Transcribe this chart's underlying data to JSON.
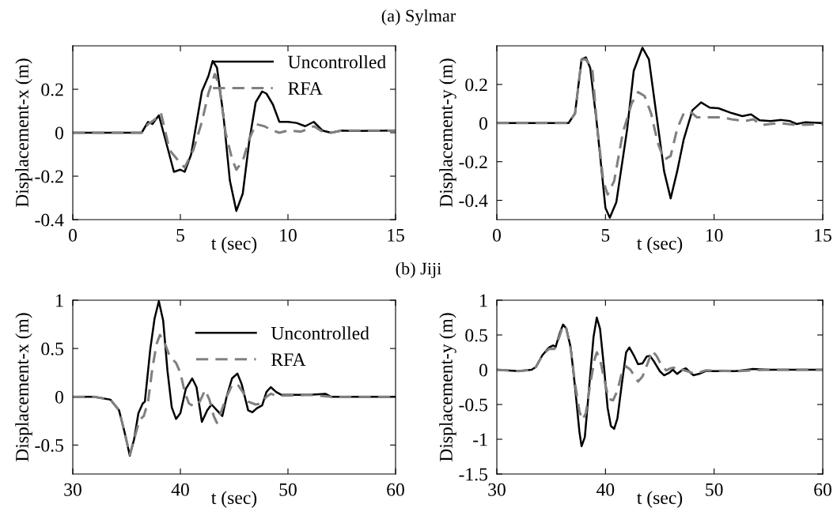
{
  "chart_data": [
    {
      "type": "line",
      "title": "(a) Sylmar",
      "xlabel": "t (sec)",
      "ylabel": "Displacement-x (m)",
      "xlim": [
        0,
        15
      ],
      "xticks": [
        0,
        5,
        10,
        15
      ],
      "ylim": [
        -0.4,
        0.4
      ],
      "yticks": [
        -0.4,
        -0.2,
        0,
        0.2
      ],
      "legend": "top right",
      "grid": false,
      "series": [
        {
          "name": "Uncontrolled",
          "color": "#000000",
          "line_style": "solid",
          "x": [
            0,
            3.2,
            3.5,
            3.7,
            4.0,
            4.3,
            4.7,
            5.0,
            5.2,
            5.5,
            6.0,
            6.3,
            6.5,
            6.7,
            7.0,
            7.3,
            7.6,
            7.9,
            8.2,
            8.5,
            8.8,
            9.0,
            9.3,
            9.6,
            10.0,
            10.4,
            10.8,
            11.2,
            11.6,
            12.0,
            12.5,
            13,
            15
          ],
          "values": [
            0,
            0,
            0.05,
            0.04,
            0.08,
            -0.03,
            -0.18,
            -0.17,
            -0.18,
            -0.1,
            0.19,
            0.26,
            0.33,
            0.3,
            0.08,
            -0.22,
            -0.36,
            -0.28,
            -0.04,
            0.14,
            0.19,
            0.18,
            0.13,
            0.05,
            0.05,
            0.045,
            0.03,
            0.05,
            0.01,
            0,
            0.01,
            0.008,
            0.01
          ]
        },
        {
          "name": "RFA",
          "color": "#808080",
          "line_style": "dashed",
          "x": [
            0,
            3.2,
            3.5,
            3.8,
            4.1,
            4.5,
            5.0,
            5.2,
            5.6,
            6.0,
            6.3,
            6.6,
            6.8,
            7.1,
            7.4,
            7.6,
            7.9,
            8.2,
            8.5,
            8.9,
            9.3,
            9.6,
            10,
            10.6,
            11,
            11.2,
            11.6,
            12,
            12.5,
            15
          ],
          "values": [
            0,
            0,
            0.04,
            0.06,
            0.09,
            -0.08,
            -0.14,
            -0.16,
            -0.08,
            0.05,
            0.18,
            0.27,
            0.22,
            0.0,
            -0.12,
            -0.17,
            -0.13,
            -0.03,
            0.04,
            0.03,
            0.01,
            0,
            0.01,
            0.005,
            0.02,
            0.03,
            0.005,
            0.0,
            0.01,
            0.01
          ]
        }
      ]
    },
    {
      "type": "line",
      "xlabel": "t (sec)",
      "ylabel": "Displacement-y (m)",
      "xlim": [
        0,
        15
      ],
      "xticks": [
        0,
        5,
        10,
        15
      ],
      "ylim": [
        -0.5,
        0.4
      ],
      "yticks": [
        -0.4,
        -0.2,
        0,
        0.2
      ],
      "legend": false,
      "grid": false,
      "series": [
        {
          "color": "#000000",
          "line_style": "solid",
          "x": [
            0,
            3.3,
            3.6,
            3.9,
            4.1,
            4.3,
            4.6,
            5.0,
            5.2,
            5.5,
            6.0,
            6.3,
            6.7,
            7.0,
            7.3,
            7.7,
            8.0,
            8.3,
            8.6,
            9.0,
            9.4,
            9.8,
            10.2,
            10.8,
            11.3,
            11.7,
            12.1,
            12.6,
            13.1,
            13.5,
            13.8,
            14.2,
            15
          ],
          "values": [
            0,
            0,
            0.05,
            0.33,
            0.34,
            0.285,
            0,
            -0.44,
            -0.49,
            -0.41,
            -0.03,
            0.27,
            0.39,
            0.33,
            0.08,
            -0.25,
            -0.39,
            -0.25,
            -0.085,
            0.066,
            0.107,
            0.08,
            0.077,
            0.052,
            0.036,
            0.045,
            0.014,
            0.01,
            0.016,
            0.01,
            -0.005,
            0.004,
            0
          ]
        },
        {
          "color": "#808080",
          "line_style": "dashed",
          "x": [
            0,
            3.3,
            3.6,
            3.9,
            4.1,
            4.4,
            4.6,
            4.9,
            5.1,
            5.4,
            5.8,
            6.2,
            6.5,
            6.8,
            7.1,
            7.4,
            7.7,
            8.0,
            8.3,
            8.6,
            8.9,
            9.2,
            9.8,
            10.3,
            10.8,
            11.4,
            11.8,
            12.2,
            13,
            13.8,
            15
          ],
          "values": [
            0,
            0,
            0.05,
            0.33,
            0.33,
            0.27,
            0,
            -0.3,
            -0.37,
            -0.3,
            -0.05,
            0.1,
            0.16,
            0.14,
            0.05,
            -0.1,
            -0.19,
            -0.17,
            -0.03,
            0.05,
            0.06,
            0.03,
            0.03,
            0.03,
            0.02,
            0.01,
            0.02,
            -0.01,
            0.0,
            -0.01,
            -0.005
          ]
        }
      ]
    },
    {
      "type": "line",
      "title": "(b) Jiji",
      "xlabel": "t (sec)",
      "ylabel": "Displacement-x (m)",
      "xlim": [
        30,
        60
      ],
      "xticks": [
        30,
        40,
        50,
        60
      ],
      "ylim": [
        -0.8,
        1
      ],
      "yticks": [
        -0.5,
        0,
        0.5,
        1
      ],
      "legend": "top right",
      "grid": false,
      "series": [
        {
          "name": "Uncontrolled",
          "color": "#000000",
          "line_style": "solid",
          "x": [
            30,
            32,
            33.5,
            34.3,
            34.8,
            35.3,
            35.7,
            36.1,
            36.5,
            36.7,
            37.2,
            37.6,
            38.0,
            38.4,
            38.8,
            39.2,
            39.6,
            40.0,
            40.5,
            41.1,
            41.5,
            42.0,
            42.5,
            42.9,
            43.4,
            43.9,
            44.3,
            44.8,
            45.3,
            45.7,
            46.3,
            46.7,
            47.1,
            47.6,
            48.0,
            48.4,
            48.9,
            49.4,
            52,
            53.5,
            54,
            57,
            60
          ],
          "values": [
            0,
            0,
            -0.03,
            -0.14,
            -0.36,
            -0.61,
            -0.44,
            -0.17,
            -0.07,
            -0.05,
            0.49,
            0.81,
            0.99,
            0.79,
            0.27,
            -0.11,
            -0.23,
            -0.17,
            0.08,
            0.19,
            0.1,
            -0.26,
            -0.14,
            -0.08,
            -0.14,
            -0.2,
            0.0,
            0.19,
            0.24,
            0.13,
            -0.14,
            -0.16,
            -0.12,
            -0.09,
            0.05,
            0.1,
            0.05,
            0.02,
            0.02,
            0.03,
            0.0,
            0,
            0
          ]
        },
        {
          "name": "RFA",
          "color": "#808080",
          "line_style": "dashed",
          "x": [
            30,
            32,
            33.5,
            34.3,
            34.8,
            35.3,
            35.7,
            36.2,
            36.6,
            37.0,
            37.4,
            37.8,
            38.1,
            38.5,
            39.0,
            39.6,
            40.0,
            40.4,
            40.8,
            41.3,
            41.8,
            42.3,
            42.7,
            43.1,
            43.4,
            43.8,
            44.3,
            44.8,
            45.3,
            45.8,
            46.3,
            47.0,
            47.5,
            48.0,
            48.4,
            49,
            52,
            54,
            57,
            60
          ],
          "values": [
            0,
            0,
            -0.03,
            -0.14,
            -0.36,
            -0.6,
            -0.44,
            -0.24,
            -0.2,
            -0.05,
            0.3,
            0.55,
            0.64,
            0.57,
            0.42,
            0.35,
            0.25,
            0.05,
            -0.07,
            -0.1,
            -0.05,
            0.07,
            -0.03,
            -0.2,
            -0.27,
            -0.15,
            0.0,
            0.12,
            0.13,
            0.05,
            -0.05,
            -0.08,
            -0.07,
            0.0,
            0.03,
            0.01,
            0.02,
            0.0,
            0,
            0
          ]
        }
      ]
    },
    {
      "type": "line",
      "xlabel": "t (sec)",
      "ylabel": "Displacement-y (m)",
      "xlim": [
        30,
        60
      ],
      "xticks": [
        30,
        40,
        50,
        60
      ],
      "ylim": [
        -1.5,
        1
      ],
      "yticks": [
        -1.5,
        -1,
        -0.5,
        0,
        0.5,
        1
      ],
      "legend": false,
      "grid": false,
      "series": [
        {
          "color": "#000000",
          "line_style": "solid",
          "x": [
            30,
            32,
            33.2,
            33.6,
            34.2,
            34.8,
            35.2,
            35.4,
            35.8,
            36.1,
            36.4,
            36.8,
            37.2,
            37.6,
            37.8,
            38.1,
            38.5,
            38.9,
            39.2,
            39.5,
            39.9,
            40.2,
            40.5,
            40.8,
            41.1,
            41.5,
            41.9,
            42.2,
            42.6,
            43.0,
            43.4,
            43.8,
            44.1,
            44.5,
            45.0,
            45.4,
            45.9,
            46.2,
            46.6,
            47.1,
            47.4,
            47.8,
            48.1,
            48.6,
            49.2,
            50,
            52,
            53.5,
            55,
            58,
            60
          ],
          "values": [
            0,
            -0.02,
            0,
            0.04,
            0.21,
            0.32,
            0.35,
            0.32,
            0.53,
            0.65,
            0.59,
            0.32,
            -0.25,
            -0.89,
            -1.1,
            -0.97,
            -0.25,
            0.47,
            0.75,
            0.59,
            -0.02,
            -0.55,
            -0.81,
            -0.85,
            -0.7,
            -0.21,
            0.25,
            0.32,
            0.21,
            0.08,
            0.09,
            0.19,
            0.2,
            0.11,
            -0.02,
            -0.08,
            -0.04,
            0,
            -0.06,
            0.0,
            0.02,
            -0.04,
            -0.08,
            -0.06,
            -0.02,
            -0.02,
            -0.02,
            0.01,
            0.0,
            0,
            0
          ]
        },
        {
          "color": "#808080",
          "line_style": "dashed",
          "x": [
            30,
            32,
            33.2,
            33.6,
            34.2,
            34.8,
            35.3,
            35.6,
            36.1,
            36.4,
            36.8,
            37.2,
            37.6,
            37.9,
            38.2,
            38.6,
            39.0,
            39.2,
            39.5,
            39.9,
            40.3,
            40.7,
            41.1,
            41.5,
            41.9,
            42.3,
            42.7,
            43.0,
            43.4,
            43.9,
            44.3,
            44.7,
            45.2,
            45.6,
            46.0,
            46.3,
            46.7,
            47.1,
            47.5,
            48.1,
            48.6,
            49.2,
            52,
            55,
            60
          ],
          "values": [
            0,
            -0.02,
            0,
            0.04,
            0.21,
            0.3,
            0.3,
            0.4,
            0.64,
            0.59,
            0.3,
            -0.2,
            -0.6,
            -0.72,
            -0.62,
            -0.2,
            0.15,
            0.25,
            0.15,
            -0.15,
            -0.42,
            -0.44,
            -0.3,
            -0.05,
            0.05,
            0.0,
            -0.1,
            -0.17,
            -0.1,
            0.1,
            0.27,
            0.2,
            0.05,
            -0.01,
            0.02,
            0.03,
            -0.02,
            0.0,
            -0.02,
            -0.05,
            -0.04,
            -0.01,
            -0.02,
            0,
            0
          ]
        }
      ]
    }
  ]
}
